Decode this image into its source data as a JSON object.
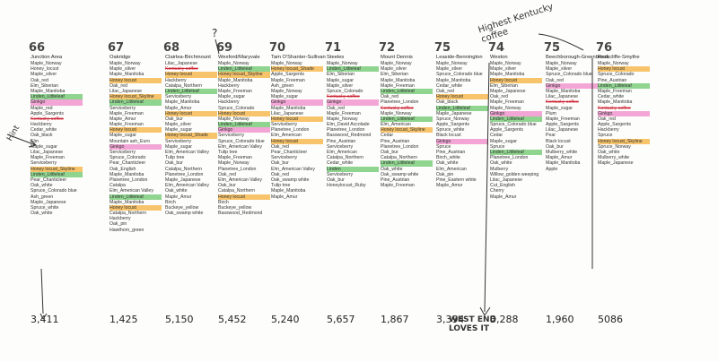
{
  "columns": [
    {
      "num": "66",
      "header": "Junction Area",
      "total": "3,411",
      "items": [
        "Maple_Norway",
        "Honey_locust",
        "Maple_silver",
        "Oak_red",
        "Elm_Siberian",
        "Maple_Manitoba",
        "Linden_Littleleaf",
        "Ginkgo",
        "Maple_red",
        "Apple_Sargents",
        "Kentucky coffee",
        "Hackberry",
        "Cedar_white",
        "Oak_black",
        "Elm",
        "Maple_sugar",
        "Lilac_Japanese",
        "Maple_Freeman",
        "Serviceberry",
        "Honey locust_Skyline",
        "Linden_Littleleaf",
        "Pear_Chanticleer",
        "Oak_white",
        "Spruce_Colorado blue",
        "Ash_green",
        "Maple_Japanese",
        "Spruce_white",
        "Oak_white"
      ]
    },
    {
      "num": "67",
      "header": "Oakridge",
      "total": "1,425",
      "items": [
        "Maple_Norway",
        "Maple_silver",
        "Maple_Manitoba",
        "Honey locust",
        "Oak_red",
        "Lilac_Japanese",
        "Honey locust_Skyline",
        "Linden_Littleleaf",
        "Serviceberry",
        "Maple_Freeman",
        "Maple_Amur",
        "Maple_Freeman",
        "Honey locust",
        "Maple_sugar",
        "Mountain ash_Euro",
        "Ginkgo",
        "Serviceberry",
        "Spruce_Colorado",
        "Pear_Chanticleer",
        "Oak_English",
        "Maple_Manitoba",
        "Planetree_London",
        "Catalpa",
        "Elm_American Valley",
        "Linden_Littleleaf",
        "Maple_Manitoba",
        "Honey locust",
        "Catalpa_Northern",
        "Hackberry",
        "Oak_pin",
        "Hawthorn_green"
      ]
    },
    {
      "num": "68",
      "header": "Clairlea-Birchmount",
      "total": "5,150",
      "items": [
        "Lilac_Japanese",
        "Kentucky coffee",
        "Honey locust",
        "Hackberry",
        "Catalpa_Northern",
        "Linden_Littleleaf",
        "Serviceberry",
        "Maple_Manitoba",
        "Maple_Amur",
        "Honey locust",
        "Oak_bur",
        "Maple_silver",
        "Maple_sugar",
        "Honey locust_Shade",
        "Serviceberry",
        "Maple_sugar",
        "Elm_American Valley",
        "Tulip tree",
        "Oak_bur",
        "Catalpa_Northern",
        "Planetree_London",
        "Maple_Japanese",
        "Elm_American Valley",
        "Oak_white",
        "Maple_Amur",
        "Birch",
        "Buckeye_yellow",
        "Oak_swamp white"
      ]
    },
    {
      "num": "69",
      "header": "Wexford/Maryvale",
      "total": "5,452",
      "items": [
        "Maple_Norway",
        "Linden_Littleleaf",
        "Honey locust_Skyline",
        "Maple_Manitoba",
        "Hackberry",
        "Maple_Freeman",
        "Maple_sugar",
        "Hackberry",
        "Spruce_Colorado",
        "Honey locust",
        "Maple_Norway",
        "Linden_Littleleaf",
        "Ginkgo",
        "Serviceberry",
        "Spruce_Colorado blue",
        "Elm_American Valley",
        "Tulip tree",
        "Maple_Freeman",
        "Maple_Norway",
        "Planetree_London",
        "Oak_red",
        "Elm_American Valley",
        "Oak_bur",
        "Catalpa_Northern",
        "Honey locust",
        "Birch",
        "Buckeye_yellow",
        "Basswood_Redmond"
      ]
    },
    {
      "num": "70",
      "header": "Tam O'Shanter-Sullivan",
      "total": "5,240",
      "items": [
        "Maple_Norway",
        "Honey locust_Shade",
        "Apple_Sargents",
        "Maple_Freeman",
        "Ash_green",
        "Maple_Norway",
        "Maple_sugar",
        "Ginkgo",
        "Maple_Manitoba",
        "Lilac_Japanese",
        "Honey locust",
        "Serviceberry",
        "Planetree_London",
        "Elm_American",
        "Honey locust",
        "Oak_red",
        "Pear_Chanticleer",
        "Serviceberry",
        "Oak_bur",
        "Elm_American Valley",
        "Oak_red",
        "Oak_swamp white",
        "Tulip tree",
        "Maple_Manitoba",
        "Maple_Amur"
      ]
    },
    {
      "num": "71",
      "header": "Steeles",
      "total": "5,657",
      "items": [
        "Maple_Norway",
        "Linden_Littleleaf",
        "Elm_Siberian",
        "Maple_sugar",
        "Maple_silver",
        "Spruce_Colorado",
        "Kentucky coffee",
        "Ginkgo",
        "Oak_red",
        "Maple_Freeman",
        "Maple_Norway",
        "Elm_David Accolade",
        "Planetree_London",
        "Basswood_Redmond",
        "Pine_Austrian",
        "Serviceberry",
        "Elm_American",
        "Catalpa_Northern",
        "Cedar_white",
        "Linden",
        "Serviceberry",
        "Oak_bur",
        "Honeylocust_Ruby"
      ]
    },
    {
      "num": "72",
      "header": "Mount Dennis",
      "total": "1,867",
      "items": [
        "Maple_Norway",
        "Maple_silver",
        "Elm_Siberian",
        "Maple_Manitoba",
        "Maple_Freeman",
        "Linden_Littleleaf",
        "Oak_red",
        "Planetree_London",
        "Kentucky coffee",
        "Maple_Norway",
        "Linden_Littleleaf",
        "Elm_American",
        "Honey locust_Skyline",
        "Cedar",
        "Pine_Austrian",
        "Planetree_London",
        "Oak_bur",
        "Catalpa_Northern",
        "Linden_Littleleaf",
        "Oak_white",
        "Oak_swamp white",
        "Pine_Austrian",
        "Maple_Freeman"
      ]
    },
    {
      "num": "75",
      "header": "Leaside-Bennington",
      "total": "3,394",
      "items": [
        "Maple_Norway",
        "Maple_silver",
        "Spruce_Colorado blue",
        "Maple_Manitoba",
        "Cedar_white",
        "Oak_red",
        "Honey locust",
        "Oak_black",
        "Linden_Littleleaf",
        "Maple_Japanese",
        "Spruce_Norway",
        "Apple_Sargents",
        "Spruce_white",
        "Black locust",
        "Ginkgo",
        "Spruce",
        "Pine_Austrian",
        "Birch_white",
        "Oak_white",
        "Elm_American",
        "Oak_pin",
        "Pine_Eastern white",
        "Maple_Amur"
      ]
    },
    {
      "num": "74",
      "header": "Weston",
      "total": "3,288",
      "items": [
        "Maple_Norway",
        "Maple_silver",
        "Maple_Manitoba",
        "Honey locust",
        "Elm_Siberian",
        "Maple_Japanese",
        "Oak_red",
        "Maple_Freeman",
        "Maple_Norway",
        "Ginkgo",
        "Linden_Littleleaf",
        "Spruce_Colorado blue",
        "Apple_Sargents",
        "Cedar",
        "Maple_sugar",
        "Spruce",
        "Linden_Littleleaf",
        "Planetree_London",
        "Oak_white",
        "Mulberry",
        "Willow_golden weeping",
        "Lilac_Japanese",
        "Cut_English",
        "Cherry",
        "Maple_Amur"
      ]
    },
    {
      "num": "75",
      "header": "Beechborough-Greenbrook",
      "total": "1,960",
      "items": [
        "Maple_Norway",
        "Maple_silver",
        "Spruce_Colorado blue",
        "Oak_red",
        "Ginkgo",
        "Maple_Manitoba",
        "Lilac_Japanese",
        "Kentucky coffee",
        "Maple_sugar",
        "Plum",
        "Maple_Freeman",
        "Apple_Sargents",
        "Lilac_Japanese",
        "Pear",
        "Black locust",
        "Oak_bur",
        "Mulberry_white",
        "Maple_Amur",
        "Maple_Manitoba",
        "Apple"
      ]
    },
    {
      "num": "76",
      "header": "Rockcliffe-Smythe",
      "total": "5086",
      "items": [
        "Maple_Norway",
        "Honey locust",
        "Spruce_Colorado",
        "Pine_Austrian",
        "Linden_Littleleaf",
        "Maple_Freeman",
        "Cedar_white",
        "Maple_Manitoba",
        "Kentucky coffee",
        "Ginkgo",
        "Oak_red",
        "Apple_Sargents",
        "Hackberry",
        "Spruce",
        "Honey locust_Skyline",
        "Spruce_Norway",
        "Oak_white",
        "Mulberry_white",
        "Maple_Japanese"
      ]
    }
  ],
  "annotations": {
    "highest": "Highest Kentucky coffee",
    "west_end": "WEST END LOVES IT",
    "hint": "Hint",
    "question": "?"
  }
}
